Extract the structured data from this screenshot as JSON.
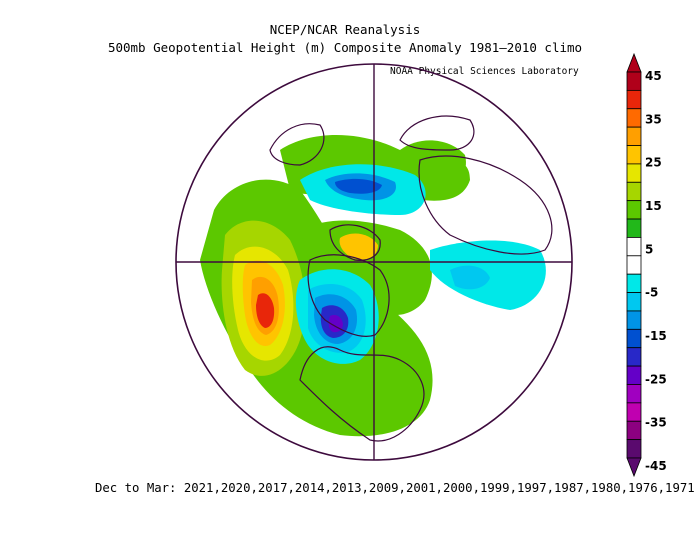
{
  "header": {
    "title_line1": "NCEP/NCAR Reanalysis",
    "title_line2": "500mb Geopotential Height (m) Composite Anomaly 1981–2010 climo",
    "credit": "NOAA Physical Sciences Laboratory"
  },
  "footer": {
    "years_text": "Dec to Mar: 2021,2020,2017,2014,2013,2009,2001,2000,1999,1997,1987,1980,1976,1971"
  },
  "colorbar": {
    "labels": [
      "45",
      "35",
      "25",
      "15",
      "5",
      "-5",
      "-15",
      "-25",
      "-35",
      "-45"
    ],
    "colors": [
      "#b0001a",
      "#e8260a",
      "#ff6a00",
      "#ff9f00",
      "#ffc400",
      "#e6e600",
      "#a6d600",
      "#5cc800",
      "#22b81a",
      "#ffffff",
      "#ffffff",
      "#00e8e8",
      "#00c8f0",
      "#0094e6",
      "#0050d0",
      "#2828c8",
      "#6400c8",
      "#a000c0",
      "#c000b0",
      "#8c0080",
      "#5a0a6e"
    ]
  },
  "anomalies": {
    "pacific_ridge_max": 45,
    "canada_trough_min": -25,
    "arctic_trough_min": -15
  },
  "map": {
    "projection": "north-polar-stereographic",
    "outline_color": "#3d0a3d"
  }
}
